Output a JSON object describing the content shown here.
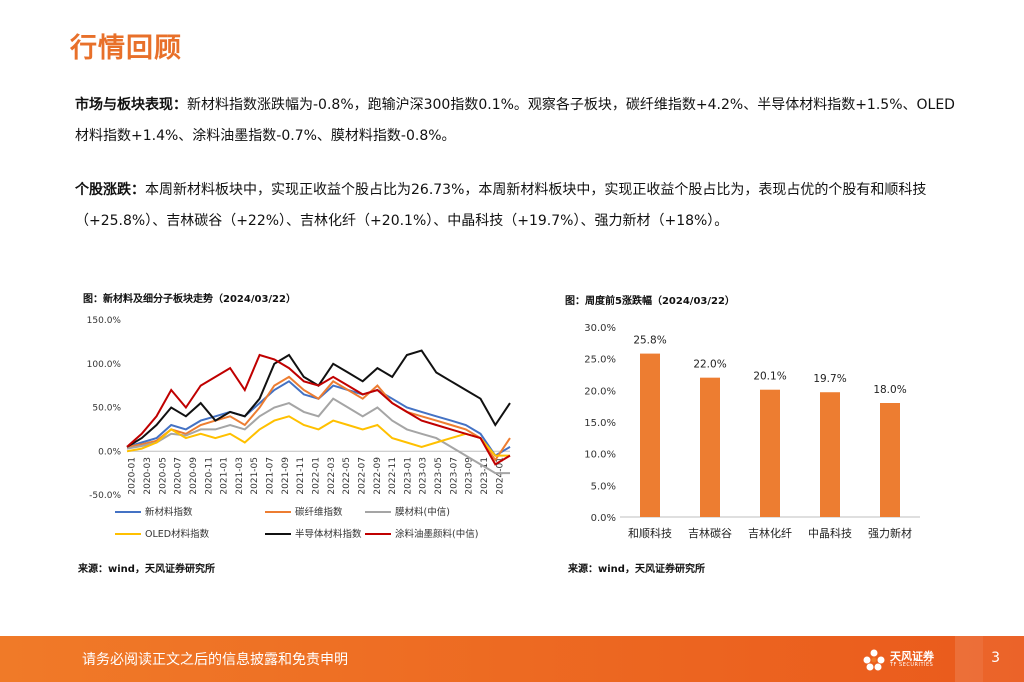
{
  "title": "行情回顾",
  "paragraphs": [
    {
      "label": "市场与板块表现：",
      "text": "新材料指数涨跌幅为-0.8%，跑输沪深300指数0.1%。观察各子板块，碳纤维指数+4.2%、半导体材料指数+1.5%、OLED材料指数+1.4%、涂料油墨指数-0.7%、膜材料指数-0.8%。"
    },
    {
      "label": "个股涨跌：",
      "text": "本周新材料板块中，实现正收益个股占比为26.73%，本周新材料板块中，实现正收益个股占比为，表现占优的个股有和顺科技（+25.8%）、吉林碳谷（+22%）、吉林化纤（+20.1%）、中晶科技（+19.7%）、强力新材（+18%）。"
    }
  ],
  "line_chart_title": "图：新材料及细分子板块走势（2024/03/22）",
  "bar_chart_title": "图：周度前5涨跌幅（2024/03/22）",
  "source_left": "来源：wind，天风证券研究所",
  "source_right": "来源：wind，天风证券研究所",
  "footer": {
    "disclaimer": "请务必阅读正文之后的信息披露和免责申明",
    "logo_name": "天风证券",
    "logo_sub": "TF SECURITIES",
    "page": "3"
  },
  "colors": {
    "accent": "#e8702a",
    "bar": "#ed7d31"
  },
  "chart_data": [
    {
      "type": "line",
      "title": "图：新材料及细分子板块走势（2024/03/22）",
      "y_ticks": [
        "150.0%",
        "100.0%",
        "50.0%",
        "0.0%",
        "-50.0%"
      ],
      "ylim": [
        -50,
        150
      ],
      "x_ticks": [
        "2020-01",
        "2020-03",
        "2020-05",
        "2020-07",
        "2020-09",
        "2020-11",
        "2021-01",
        "2021-03",
        "2021-05",
        "2021-07",
        "2021-09",
        "2021-11",
        "2022-01",
        "2022-03",
        "2022-05",
        "2022-07",
        "2022-09",
        "2022-11",
        "2023-01",
        "2023-03",
        "2023-05",
        "2023-07",
        "2023-09",
        "2023-11",
        "2024-01"
      ],
      "series": [
        {
          "name": "新材料指数",
          "color": "#4472c4",
          "values": [
            5,
            10,
            15,
            30,
            25,
            35,
            40,
            45,
            40,
            55,
            70,
            80,
            65,
            60,
            75,
            70,
            65,
            70,
            60,
            50,
            45,
            40,
            35,
            30,
            20,
            -5,
            5
          ]
        },
        {
          "name": "碳纤维指数",
          "color": "#ed7d31",
          "values": [
            5,
            8,
            12,
            25,
            20,
            30,
            35,
            40,
            30,
            50,
            75,
            85,
            70,
            60,
            80,
            70,
            60,
            75,
            55,
            45,
            40,
            35,
            30,
            25,
            15,
            -10,
            15
          ]
        },
        {
          "name": "膜材料(中信)",
          "color": "#a5a5a5",
          "values": [
            3,
            6,
            10,
            20,
            18,
            25,
            25,
            30,
            25,
            40,
            50,
            55,
            45,
            40,
            60,
            50,
            40,
            50,
            35,
            25,
            20,
            15,
            5,
            -5,
            -15,
            -25,
            -25
          ]
        },
        {
          "name": "OLED材料指数",
          "color": "#ffc000",
          "values": [
            0,
            3,
            10,
            25,
            15,
            20,
            15,
            20,
            10,
            25,
            35,
            40,
            30,
            25,
            35,
            30,
            25,
            30,
            15,
            10,
            5,
            10,
            15,
            20,
            15,
            -5,
            -5
          ]
        },
        {
          "name": "半导体材料指数",
          "color": "#111111",
          "values": [
            5,
            15,
            30,
            50,
            40,
            55,
            35,
            45,
            40,
            60,
            100,
            110,
            85,
            75,
            100,
            90,
            80,
            95,
            85,
            110,
            115,
            90,
            80,
            70,
            60,
            30,
            55
          ]
        },
        {
          "name": "涂料油墨颜料(中信)",
          "color": "#c00000",
          "values": [
            5,
            20,
            40,
            70,
            50,
            75,
            85,
            95,
            70,
            110,
            105,
            95,
            80,
            75,
            85,
            75,
            65,
            70,
            55,
            45,
            35,
            30,
            25,
            20,
            15,
            -15,
            -5
          ]
        }
      ]
    },
    {
      "type": "bar",
      "title": "图：周度前5涨跌幅（2024/03/22）",
      "categories": [
        "和顺科技",
        "吉林碳谷",
        "吉林化纤",
        "中晶科技",
        "强力新材"
      ],
      "values": [
        25.8,
        22.0,
        20.1,
        19.7,
        18.0
      ],
      "value_labels": [
        "25.8%",
        "22.0%",
        "20.1%",
        "19.7%",
        "18.0%"
      ],
      "y_ticks": [
        "30.0%",
        "25.0%",
        "20.0%",
        "15.0%",
        "10.0%",
        "5.0%",
        "0.0%"
      ],
      "ylim": [
        0,
        30
      ]
    }
  ]
}
